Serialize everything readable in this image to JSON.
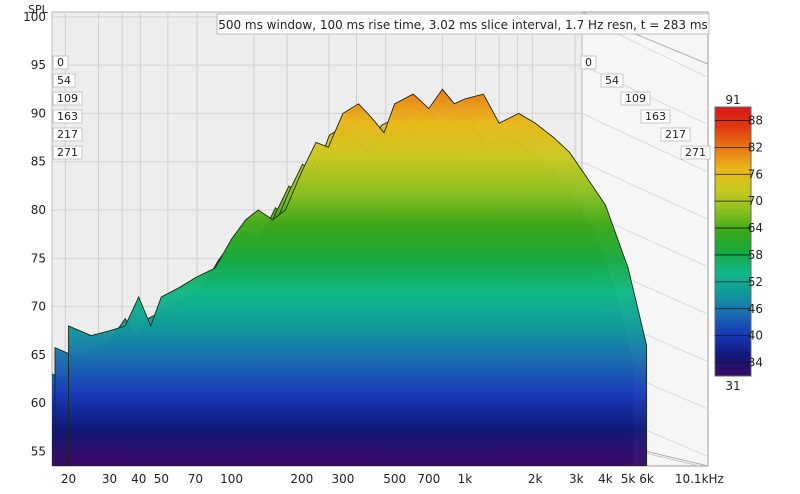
{
  "chart_data": {
    "type": "area",
    "title": "500 ms window, 100 ms rise time, 3.02 ms slice interval, 1.7 Hz resn, t = 283 ms",
    "ylabel": "SPL",
    "xlabel": "",
    "x_scale": "log",
    "xlim": [
      17,
      11000
    ],
    "ylim": [
      53.5,
      100.5
    ],
    "x_ticks": [
      {
        "value": 20,
        "label": "20"
      },
      {
        "value": 30,
        "label": "30"
      },
      {
        "value": 40,
        "label": "40"
      },
      {
        "value": 50,
        "label": "50"
      },
      {
        "value": 70,
        "label": "70"
      },
      {
        "value": 100,
        "label": "100"
      },
      {
        "value": 200,
        "label": "200"
      },
      {
        "value": 300,
        "label": "300"
      },
      {
        "value": 500,
        "label": "500"
      },
      {
        "value": 700,
        "label": "700"
      },
      {
        "value": 1000,
        "label": "1k"
      },
      {
        "value": 2000,
        "label": "2k"
      },
      {
        "value": 3000,
        "label": "3k"
      },
      {
        "value": 4000,
        "label": "4k"
      },
      {
        "value": 5000,
        "label": "5k"
      },
      {
        "value": 6000,
        "label": "6k"
      },
      {
        "value": 10100,
        "label": "10.1kHz"
      }
    ],
    "y_ticks": [
      55,
      60,
      65,
      70,
      75,
      80,
      85,
      90,
      95,
      100
    ],
    "time_ticks_ms": [
      "0",
      "54",
      "109",
      "163",
      "217",
      "271"
    ],
    "colorbar": {
      "min_label": "31",
      "max_label": "91",
      "tick_labels": [
        "88",
        "82",
        "76",
        "70",
        "64",
        "58",
        "52",
        "46",
        "40",
        "34"
      ],
      "min": 31,
      "max": 91,
      "colors": [
        "#3a0a6a",
        "#101878",
        "#1838b8",
        "#1a6ab0",
        "#0f9a9a",
        "#10b888",
        "#18a840",
        "#3aa818",
        "#8cc020",
        "#c8c820",
        "#e8b818",
        "#e87a14",
        "#e03a10",
        "#d81818"
      ]
    },
    "series": [
      {
        "t_ms": 0,
        "freqs": [
          20,
          25,
          30,
          35,
          40,
          45,
          50,
          60,
          70,
          85,
          100,
          115,
          130,
          150,
          170,
          200,
          230,
          260,
          300,
          350,
          400,
          450,
          500,
          600,
          700,
          800,
          900,
          1000,
          1200,
          1400,
          1700,
          2000,
          2400,
          2800,
          3300,
          4000,
          5000,
          6000
        ],
        "values": [
          68,
          67,
          67.5,
          68,
          71,
          68,
          71,
          72,
          73,
          74,
          77,
          79,
          80,
          79,
          80,
          84,
          87,
          86.5,
          90,
          91,
          89.5,
          88,
          91,
          92,
          90.5,
          92.5,
          91,
          91.5,
          92,
          89,
          90,
          89,
          87.5,
          86,
          83.5,
          80.5,
          74,
          66
        ]
      },
      {
        "t_ms": 54,
        "freqs": [
          20,
          25,
          30,
          35,
          40,
          45,
          50,
          60,
          70,
          85,
          100,
          115,
          130,
          150,
          170,
          200,
          230,
          260,
          300,
          350,
          400,
          450,
          500,
          600,
          700,
          800,
          900,
          1000,
          1200,
          1400,
          1700,
          2000,
          2400,
          2800,
          3300,
          4000,
          5000,
          6000
        ],
        "values": [
          65,
          64,
          65,
          66,
          68,
          66,
          68,
          69,
          70,
          71,
          74,
          76,
          77,
          76,
          77,
          81,
          84,
          83,
          87,
          88,
          86.5,
          85,
          88,
          89,
          87.5,
          89.5,
          88,
          88.5,
          89,
          86,
          87,
          86,
          84.5,
          83,
          80.5,
          77.5,
          71,
          63
        ]
      },
      {
        "t_ms": 109,
        "freqs": [
          20,
          25,
          30,
          35,
          40,
          45,
          50,
          60,
          70,
          85,
          100,
          115,
          130,
          150,
          170,
          200,
          230,
          260,
          300,
          350,
          400,
          450,
          500,
          600,
          700,
          800,
          900,
          1000,
          1200,
          1400,
          1700,
          2000,
          2400,
          2800,
          3300,
          4000,
          5000,
          6000
        ],
        "values": [
          62,
          61,
          62,
          63,
          65,
          63,
          65,
          66,
          67,
          68,
          71,
          73,
          74,
          73,
          74,
          78,
          81,
          80,
          84,
          85,
          83.5,
          82,
          85,
          86,
          84.5,
          86.5,
          85,
          85.5,
          86,
          83,
          84,
          83,
          81.5,
          80,
          77.5,
          74.5,
          68,
          60
        ]
      },
      {
        "t_ms": 163,
        "freqs": [
          20,
          25,
          30,
          35,
          40,
          45,
          50,
          60,
          70,
          85,
          100,
          115,
          130,
          150,
          170,
          200,
          230,
          260,
          300,
          350,
          400,
          450,
          500,
          600,
          700,
          800,
          900,
          1000,
          1200,
          1400,
          1700,
          2000,
          2400,
          2800,
          3300,
          4000,
          5000,
          6000
        ],
        "values": [
          59,
          58,
          59,
          60,
          62,
          60,
          62,
          63,
          64,
          65,
          68,
          70,
          71,
          70,
          71,
          75,
          78,
          77,
          81,
          82,
          80.5,
          79,
          82,
          83,
          81.5,
          83.5,
          82,
          82.5,
          83,
          80,
          81,
          80,
          78.5,
          77,
          74.5,
          71.5,
          65,
          57
        ]
      },
      {
        "t_ms": 217,
        "freqs": [
          20,
          25,
          30,
          35,
          40,
          45,
          50,
          60,
          70,
          85,
          100,
          115,
          130,
          150,
          170,
          200,
          230,
          260,
          300,
          350,
          400,
          450,
          500,
          600,
          700,
          800,
          900,
          1000,
          1200,
          1400,
          1700,
          2000,
          2400,
          2800,
          3300,
          4000,
          5000,
          6000
        ],
        "values": [
          56,
          55,
          56,
          57,
          59,
          57,
          59,
          60,
          61,
          62,
          65,
          67,
          68,
          67,
          68,
          72,
          75,
          74,
          78,
          79,
          77.5,
          76,
          79,
          80,
          78.5,
          80.5,
          79,
          79.5,
          80,
          77,
          78,
          77,
          75.5,
          74,
          71.5,
          68.5,
          62,
          55
        ]
      },
      {
        "t_ms": 271,
        "freqs": [
          20,
          25,
          30,
          35,
          40,
          45,
          50,
          60,
          70,
          85,
          100,
          115,
          130,
          150,
          170,
          200,
          230,
          260,
          300,
          350,
          400,
          450,
          500,
          600,
          700,
          800,
          900,
          1000,
          1200,
          1400,
          1700,
          2000,
          2400,
          2800,
          3300,
          4000,
          5000,
          6000
        ],
        "values": [
          54,
          53.5,
          54,
          55,
          57,
          55,
          57,
          57.5,
          58,
          59,
          62,
          64,
          65,
          64,
          65,
          69,
          72,
          71,
          75,
          76,
          74.5,
          73,
          76,
          77,
          75.5,
          77.5,
          76,
          76.5,
          77,
          74,
          75,
          74,
          72.5,
          71,
          68.5,
          65.5,
          59,
          54
        ]
      }
    ]
  }
}
